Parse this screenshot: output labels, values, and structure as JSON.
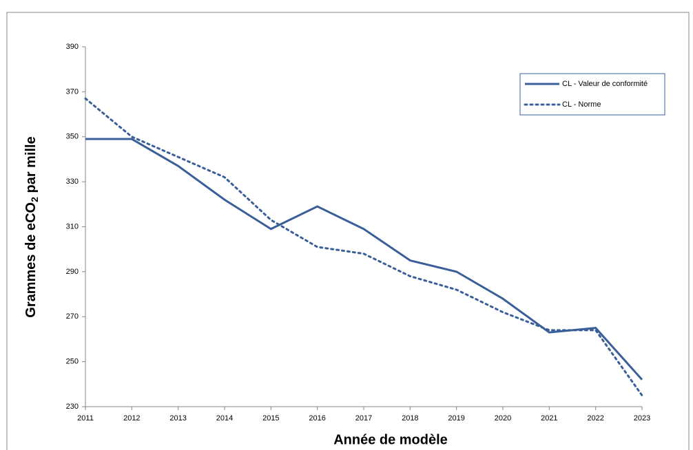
{
  "chart_data": {
    "type": "line",
    "x_label": "Année de modèle",
    "y_label": {
      "before": "Grammes de eCO",
      "subscript": "2",
      "after": " par mille"
    },
    "categories": [
      "2011",
      "2012",
      "2013",
      "2014",
      "2015",
      "2016",
      "2017",
      "2018",
      "2019",
      "2020",
      "2021",
      "2022",
      "2023"
    ],
    "series": [
      {
        "name": "CL - Valeur de conformité",
        "color": "#3a5f98",
        "style": "solid",
        "values": [
          349,
          349,
          337,
          322,
          309,
          319,
          309,
          295,
          290,
          278,
          263,
          265,
          242
        ]
      },
      {
        "name": "CL - Norme",
        "color": "#3a5f98",
        "style": "dotted",
        "values": [
          367,
          350,
          341,
          332,
          313,
          301,
          298,
          288,
          282,
          272,
          264,
          264,
          235
        ]
      }
    ],
    "ylim": [
      230,
      390
    ],
    "yticks": [
      230,
      250,
      270,
      290,
      310,
      330,
      350,
      370,
      390
    ],
    "grid": false,
    "legend": "top-right"
  }
}
